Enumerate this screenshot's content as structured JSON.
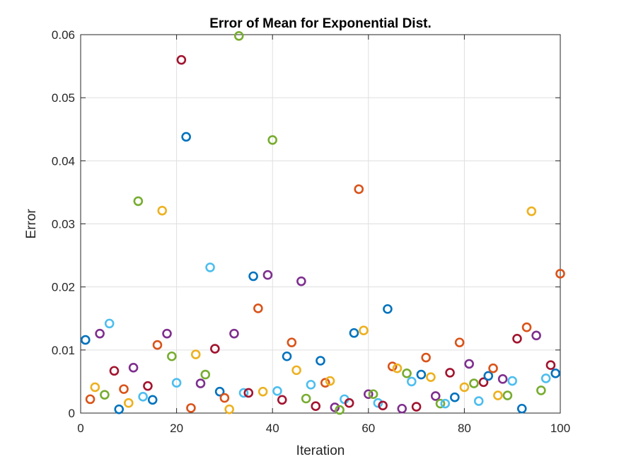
{
  "chart_data": {
    "type": "scatter",
    "title": "Error of Mean for Exponential Dist.",
    "xlabel": "Iteration",
    "ylabel": "Error",
    "xlim": [
      0,
      100
    ],
    "ylim": [
      0,
      0.06
    ],
    "xticks": [
      0,
      20,
      40,
      60,
      80,
      100
    ],
    "xtick_labels": [
      "0",
      "20",
      "40",
      "60",
      "80",
      "100"
    ],
    "yticks": [
      0,
      0.01,
      0.02,
      0.03,
      0.04,
      0.05,
      0.06
    ],
    "ytick_labels": [
      "0",
      "0.01",
      "0.02",
      "0.03",
      "0.04",
      "0.05",
      "0.06"
    ],
    "grid": true,
    "marker": "open-circle",
    "color_cycle": [
      "#0072BD",
      "#D95319",
      "#EDB120",
      "#7E2F8E",
      "#77AC30",
      "#4DBEEE",
      "#A2142F"
    ],
    "x": [
      1,
      2,
      3,
      4,
      5,
      6,
      7,
      8,
      9,
      10,
      11,
      12,
      13,
      14,
      15,
      16,
      17,
      18,
      19,
      20,
      21,
      22,
      23,
      24,
      25,
      26,
      27,
      28,
      29,
      30,
      31,
      32,
      33,
      34,
      35,
      36,
      37,
      38,
      39,
      40,
      41,
      42,
      43,
      44,
      45,
      46,
      47,
      48,
      49,
      50,
      51,
      52,
      53,
      54,
      55,
      56,
      57,
      58,
      59,
      60,
      61,
      62,
      63,
      64,
      65,
      66,
      67,
      68,
      69,
      70,
      71,
      72,
      73,
      74,
      75,
      76,
      77,
      78,
      79,
      80,
      81,
      82,
      83,
      84,
      85,
      86,
      87,
      88,
      89,
      90,
      91,
      92,
      93,
      94,
      95,
      96,
      97,
      98,
      99,
      100
    ],
    "y": [
      0.0116,
      0.0022,
      0.0041,
      0.0126,
      0.0029,
      0.0142,
      0.0067,
      0.0006,
      0.0038,
      0.0016,
      0.0072,
      0.0336,
      0.0026,
      0.0043,
      0.0021,
      0.0108,
      0.0321,
      0.0126,
      0.009,
      0.0048,
      0.056,
      0.0438,
      0.0008,
      0.0093,
      0.0047,
      0.0061,
      0.0231,
      0.0102,
      0.0034,
      0.0024,
      0.0006,
      0.0126,
      0.0598,
      0.0032,
      0.0032,
      0.0217,
      0.0166,
      0.0034,
      0.0219,
      0.0433,
      0.0035,
      0.0021,
      0.009,
      0.0112,
      0.0068,
      0.0209,
      0.0023,
      0.0045,
      0.0011,
      0.0083,
      0.0048,
      0.0051,
      0.0009,
      0.0005,
      0.0022,
      0.0016,
      0.0127,
      0.0355,
      0.0131,
      0.003,
      0.003,
      0.0016,
      0.0012,
      0.0165,
      0.0074,
      0.0071,
      0.0007,
      0.0063,
      0.005,
      0.001,
      0.0061,
      0.0088,
      0.0057,
      0.0027,
      0.0015,
      0.0015,
      0.0064,
      0.0025,
      0.0112,
      0.0041,
      0.0078,
      0.0047,
      0.0019,
      0.0049,
      0.0059,
      0.0071,
      0.0028,
      0.0054,
      0.0028,
      0.0051,
      0.0118,
      0.0007,
      0.0136,
      0.032,
      0.0123,
      0.0036,
      0.0055,
      0.0076,
      0.0063,
      0.0221
    ]
  }
}
